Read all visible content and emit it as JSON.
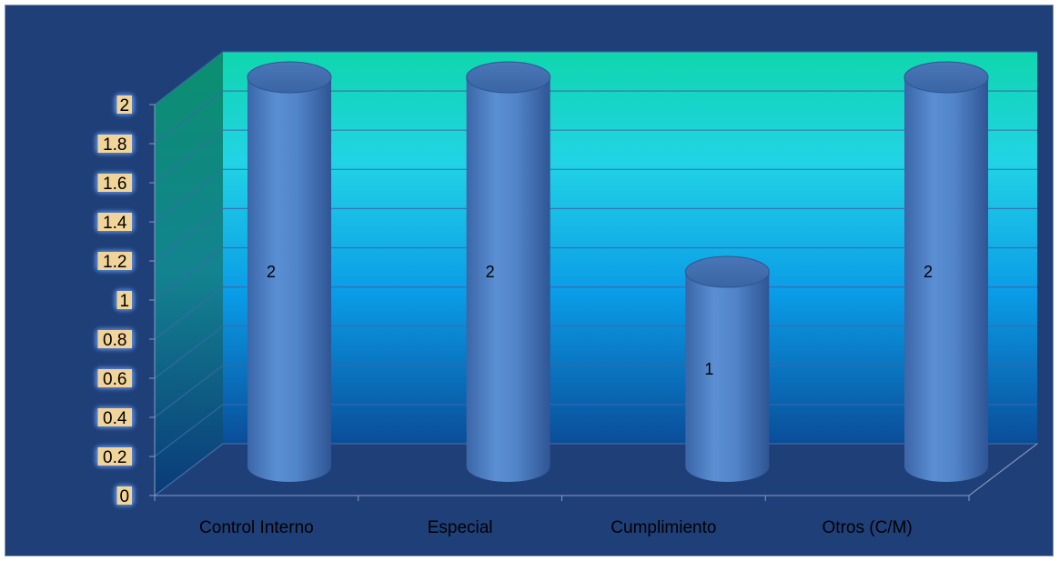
{
  "chart_data": {
    "type": "bar",
    "style": "3d-cylinder",
    "categories": [
      "Control Interno",
      "Especial",
      "Cumplimiento",
      "Otros (C/M)"
    ],
    "values": [
      2,
      2,
      1,
      2
    ],
    "data_labels": [
      "2",
      "2",
      "1",
      "2"
    ],
    "ylim": [
      0,
      2
    ],
    "yticks": [
      "0",
      "0.2",
      "0.4",
      "0.6",
      "0.8",
      "1",
      "1.2",
      "1.4",
      "1.6",
      "1.8",
      "2"
    ],
    "grid": true,
    "legend": "none",
    "title": "",
    "xlabel": "",
    "ylabel": ""
  },
  "colors": {
    "background": "#1f3f78",
    "bar": "#4f81bd",
    "wall_top": "#10d3b2",
    "wall_mid": "#22c4e6",
    "wall_bottom": "#0a58a6",
    "floor": "#1f3f78",
    "tick_label_bg": "#f1d49a"
  }
}
